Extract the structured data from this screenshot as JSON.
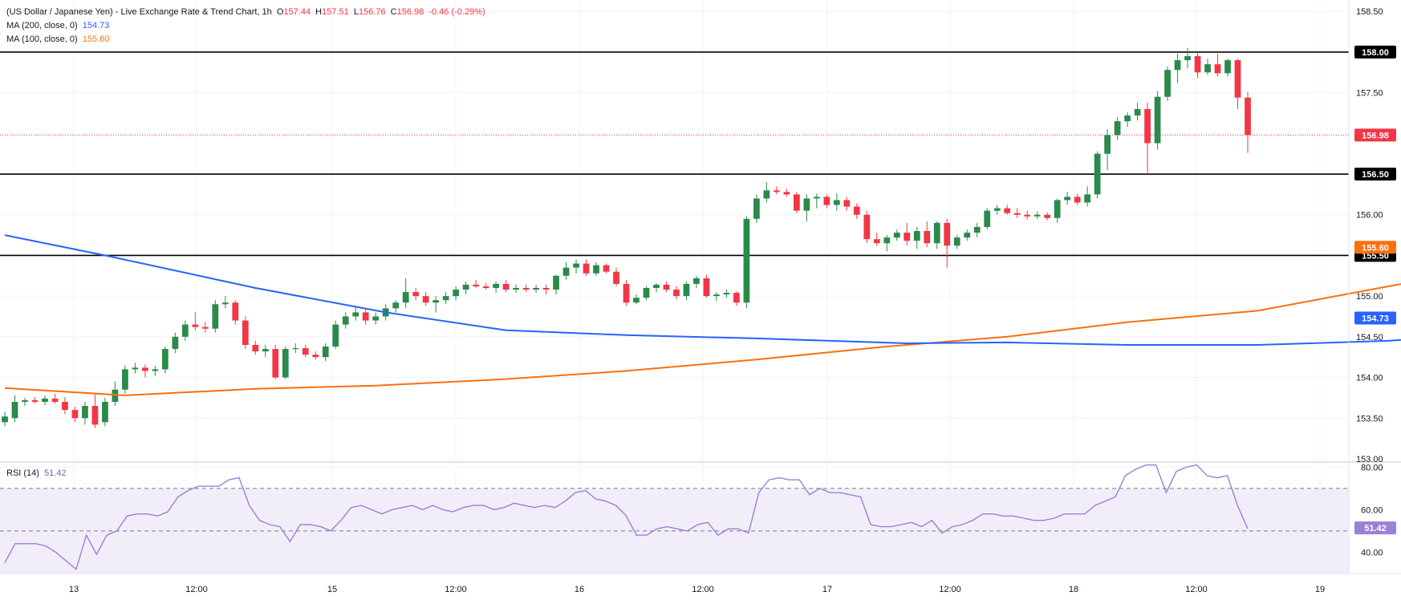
{
  "header": {
    "symbol": "(US Dollar / Japanese Yen) - Live Exchange Rate & Trend Chart, 1h",
    "open_label": "O",
    "open": "157.44",
    "high_label": "H",
    "high": "157.51",
    "low_label": "L",
    "low": "156.76",
    "close_label": "C",
    "close": "156.98",
    "change": "-0.46 (-0.29%)"
  },
  "indicators": {
    "ma200_label": "MA (200, close, 0)",
    "ma200_value": "154.73",
    "ma100_label": "MA (100, close, 0)",
    "ma100_value": "155.60",
    "rsi_label": "RSI (14)",
    "rsi_value": "51.42"
  },
  "colors": {
    "up": "#26a69a",
    "up_fill": "#2a8a4a",
    "down": "#f23645",
    "ma200": "#2962ff",
    "ma100": "#f7700f",
    "rsi": "#9c7fd6",
    "rsi_band": "#ede7f6"
  },
  "chart_data": [
    {
      "type": "candlestick",
      "title": "(US Dollar / Japanese Yen) - Live Exchange Rate & Trend Chart, 1h",
      "y_ticks": [
        "158.50",
        "158.00",
        "157.50",
        "157.00",
        "156.50",
        "156.00",
        "155.50",
        "155.00",
        "154.50",
        "154.00",
        "153.50",
        "153.00"
      ],
      "ylim": [
        152.97,
        158.64
      ],
      "x_ticks": [
        "13",
        "12:00",
        "15",
        "12:00",
        "16",
        "12:00",
        "17",
        "12:00",
        "18",
        "12:00",
        "19"
      ],
      "horizontal_levels": [
        158.0,
        156.5,
        155.5
      ],
      "level_labels": [
        "158.00",
        "156.50",
        "155.50"
      ],
      "last_price": 156.98,
      "last_price_label": "156.98",
      "candles": [
        {
          "o": 153.45,
          "h": 153.58,
          "l": 153.4,
          "c": 153.52
        },
        {
          "o": 153.5,
          "h": 153.78,
          "l": 153.45,
          "c": 153.7
        },
        {
          "o": 153.7,
          "h": 153.75,
          "l": 153.65,
          "c": 153.72
        },
        {
          "o": 153.72,
          "h": 153.76,
          "l": 153.68,
          "c": 153.7
        },
        {
          "o": 153.7,
          "h": 153.78,
          "l": 153.66,
          "c": 153.74
        },
        {
          "o": 153.74,
          "h": 153.8,
          "l": 153.68,
          "c": 153.7
        },
        {
          "o": 153.7,
          "h": 153.76,
          "l": 153.55,
          "c": 153.6
        },
        {
          "o": 153.6,
          "h": 153.64,
          "l": 153.45,
          "c": 153.5
        },
        {
          "o": 153.5,
          "h": 153.7,
          "l": 153.42,
          "c": 153.65
        },
        {
          "o": 153.65,
          "h": 153.8,
          "l": 153.38,
          "c": 153.42
        },
        {
          "o": 153.45,
          "h": 153.75,
          "l": 153.4,
          "c": 153.7
        },
        {
          "o": 153.7,
          "h": 153.95,
          "l": 153.65,
          "c": 153.85
        },
        {
          "o": 153.85,
          "h": 154.15,
          "l": 153.8,
          "c": 154.1
        },
        {
          "o": 154.1,
          "h": 154.18,
          "l": 154.05,
          "c": 154.12
        },
        {
          "o": 154.12,
          "h": 154.16,
          "l": 154.0,
          "c": 154.08
        },
        {
          "o": 154.08,
          "h": 154.14,
          "l": 154.02,
          "c": 154.1
        },
        {
          "o": 154.1,
          "h": 154.38,
          "l": 154.05,
          "c": 154.35
        },
        {
          "o": 154.35,
          "h": 154.55,
          "l": 154.3,
          "c": 154.5
        },
        {
          "o": 154.5,
          "h": 154.7,
          "l": 154.45,
          "c": 154.65
        },
        {
          "o": 154.65,
          "h": 154.8,
          "l": 154.58,
          "c": 154.62
        },
        {
          "o": 154.62,
          "h": 154.68,
          "l": 154.55,
          "c": 154.6
        },
        {
          "o": 154.6,
          "h": 154.95,
          "l": 154.55,
          "c": 154.9
        },
        {
          "o": 154.9,
          "h": 155.0,
          "l": 154.85,
          "c": 154.92
        },
        {
          "o": 154.92,
          "h": 154.95,
          "l": 154.65,
          "c": 154.7
        },
        {
          "o": 154.7,
          "h": 154.75,
          "l": 154.35,
          "c": 154.4
        },
        {
          "o": 154.4,
          "h": 154.45,
          "l": 154.28,
          "c": 154.32
        },
        {
          "o": 154.32,
          "h": 154.4,
          "l": 154.25,
          "c": 154.35
        },
        {
          "o": 154.35,
          "h": 154.4,
          "l": 153.98,
          "c": 154.0
        },
        {
          "o": 154.0,
          "h": 154.38,
          "l": 153.98,
          "c": 154.35
        },
        {
          "o": 154.35,
          "h": 154.42,
          "l": 154.3,
          "c": 154.36
        },
        {
          "o": 154.36,
          "h": 154.4,
          "l": 154.25,
          "c": 154.28
        },
        {
          "o": 154.28,
          "h": 154.32,
          "l": 154.22,
          "c": 154.25
        },
        {
          "o": 154.25,
          "h": 154.42,
          "l": 154.2,
          "c": 154.38
        },
        {
          "o": 154.38,
          "h": 154.7,
          "l": 154.35,
          "c": 154.65
        },
        {
          "o": 154.65,
          "h": 154.8,
          "l": 154.6,
          "c": 154.75
        },
        {
          "o": 154.75,
          "h": 154.88,
          "l": 154.7,
          "c": 154.8
        },
        {
          "o": 154.8,
          "h": 154.85,
          "l": 154.65,
          "c": 154.7
        },
        {
          "o": 154.7,
          "h": 154.8,
          "l": 154.65,
          "c": 154.75
        },
        {
          "o": 154.75,
          "h": 154.9,
          "l": 154.7,
          "c": 154.85
        },
        {
          "o": 154.85,
          "h": 154.95,
          "l": 154.8,
          "c": 154.92
        },
        {
          "o": 154.92,
          "h": 155.22,
          "l": 154.85,
          "c": 155.05
        },
        {
          "o": 155.05,
          "h": 155.1,
          "l": 154.95,
          "c": 155.0
        },
        {
          "o": 155.0,
          "h": 155.05,
          "l": 154.88,
          "c": 154.92
        },
        {
          "o": 154.92,
          "h": 155.0,
          "l": 154.8,
          "c": 154.95
        },
        {
          "o": 154.95,
          "h": 155.05,
          "l": 154.9,
          "c": 155.0
        },
        {
          "o": 155.0,
          "h": 155.12,
          "l": 154.95,
          "c": 155.08
        },
        {
          "o": 155.08,
          "h": 155.18,
          "l": 155.02,
          "c": 155.14
        },
        {
          "o": 155.14,
          "h": 155.2,
          "l": 155.1,
          "c": 155.12
        },
        {
          "o": 155.12,
          "h": 155.16,
          "l": 155.08,
          "c": 155.1
        },
        {
          "o": 155.1,
          "h": 155.18,
          "l": 155.04,
          "c": 155.15
        },
        {
          "o": 155.15,
          "h": 155.2,
          "l": 155.05,
          "c": 155.08
        },
        {
          "o": 155.08,
          "h": 155.14,
          "l": 155.04,
          "c": 155.1
        },
        {
          "o": 155.1,
          "h": 155.14,
          "l": 155.05,
          "c": 155.08
        },
        {
          "o": 155.08,
          "h": 155.14,
          "l": 155.04,
          "c": 155.1
        },
        {
          "o": 155.1,
          "h": 155.14,
          "l": 155.02,
          "c": 155.08
        },
        {
          "o": 155.08,
          "h": 155.26,
          "l": 155.02,
          "c": 155.25
        },
        {
          "o": 155.25,
          "h": 155.42,
          "l": 155.2,
          "c": 155.35
        },
        {
          "o": 155.35,
          "h": 155.45,
          "l": 155.28,
          "c": 155.4
        },
        {
          "o": 155.4,
          "h": 155.45,
          "l": 155.25,
          "c": 155.28
        },
        {
          "o": 155.28,
          "h": 155.42,
          "l": 155.25,
          "c": 155.38
        },
        {
          "o": 155.38,
          "h": 155.4,
          "l": 155.28,
          "c": 155.3
        },
        {
          "o": 155.3,
          "h": 155.35,
          "l": 155.12,
          "c": 155.15
        },
        {
          "o": 155.15,
          "h": 155.2,
          "l": 154.88,
          "c": 154.92
        },
        {
          "o": 154.92,
          "h": 155.02,
          "l": 154.9,
          "c": 154.98
        },
        {
          "o": 154.98,
          "h": 155.12,
          "l": 154.95,
          "c": 155.1
        },
        {
          "o": 155.1,
          "h": 155.16,
          "l": 155.05,
          "c": 155.14
        },
        {
          "o": 155.14,
          "h": 155.18,
          "l": 155.05,
          "c": 155.08
        },
        {
          "o": 155.08,
          "h": 155.12,
          "l": 154.96,
          "c": 155.0
        },
        {
          "o": 155.0,
          "h": 155.18,
          "l": 154.95,
          "c": 155.15
        },
        {
          "o": 155.15,
          "h": 155.25,
          "l": 155.1,
          "c": 155.22
        },
        {
          "o": 155.22,
          "h": 155.26,
          "l": 154.98,
          "c": 155.0
        },
        {
          "o": 155.0,
          "h": 155.05,
          "l": 154.94,
          "c": 155.02
        },
        {
          "o": 155.02,
          "h": 155.08,
          "l": 154.98,
          "c": 155.04
        },
        {
          "o": 155.04,
          "h": 155.06,
          "l": 154.88,
          "c": 154.92
        },
        {
          "o": 154.92,
          "h": 155.98,
          "l": 154.85,
          "c": 155.95
        },
        {
          "o": 155.95,
          "h": 156.25,
          "l": 155.9,
          "c": 156.2
        },
        {
          "o": 156.2,
          "h": 156.4,
          "l": 156.15,
          "c": 156.3
        },
        {
          "o": 156.3,
          "h": 156.35,
          "l": 156.25,
          "c": 156.28
        },
        {
          "o": 156.28,
          "h": 156.32,
          "l": 156.22,
          "c": 156.25
        },
        {
          "o": 156.25,
          "h": 156.28,
          "l": 156.02,
          "c": 156.05
        },
        {
          "o": 156.05,
          "h": 156.25,
          "l": 155.92,
          "c": 156.2
        },
        {
          "o": 156.2,
          "h": 156.26,
          "l": 156.08,
          "c": 156.22
        },
        {
          "o": 156.22,
          "h": 156.25,
          "l": 156.08,
          "c": 156.12
        },
        {
          "o": 156.12,
          "h": 156.26,
          "l": 156.05,
          "c": 156.18
        },
        {
          "o": 156.18,
          "h": 156.22,
          "l": 156.05,
          "c": 156.1
        },
        {
          "o": 156.1,
          "h": 156.14,
          "l": 155.95,
          "c": 156.0
        },
        {
          "o": 156.0,
          "h": 156.05,
          "l": 155.65,
          "c": 155.7
        },
        {
          "o": 155.7,
          "h": 155.78,
          "l": 155.62,
          "c": 155.65
        },
        {
          "o": 155.65,
          "h": 155.75,
          "l": 155.55,
          "c": 155.72
        },
        {
          "o": 155.72,
          "h": 155.82,
          "l": 155.68,
          "c": 155.78
        },
        {
          "o": 155.78,
          "h": 155.9,
          "l": 155.62,
          "c": 155.68
        },
        {
          "o": 155.68,
          "h": 155.85,
          "l": 155.58,
          "c": 155.8
        },
        {
          "o": 155.8,
          "h": 155.92,
          "l": 155.6,
          "c": 155.65
        },
        {
          "o": 155.65,
          "h": 155.92,
          "l": 155.58,
          "c": 155.9
        },
        {
          "o": 155.9,
          "h": 155.95,
          "l": 155.35,
          "c": 155.62
        },
        {
          "o": 155.62,
          "h": 155.75,
          "l": 155.58,
          "c": 155.72
        },
        {
          "o": 155.72,
          "h": 155.82,
          "l": 155.68,
          "c": 155.78
        },
        {
          "o": 155.78,
          "h": 155.9,
          "l": 155.72,
          "c": 155.85
        },
        {
          "o": 155.85,
          "h": 156.08,
          "l": 155.82,
          "c": 156.05
        },
        {
          "o": 156.05,
          "h": 156.12,
          "l": 156.0,
          "c": 156.08
        },
        {
          "o": 156.08,
          "h": 156.12,
          "l": 156.0,
          "c": 156.02
        },
        {
          "o": 156.02,
          "h": 156.08,
          "l": 155.96,
          "c": 156.0
        },
        {
          "o": 156.0,
          "h": 156.05,
          "l": 155.94,
          "c": 155.98
        },
        {
          "o": 155.98,
          "h": 156.04,
          "l": 155.95,
          "c": 156.0
        },
        {
          "o": 156.0,
          "h": 156.03,
          "l": 155.93,
          "c": 155.96
        },
        {
          "o": 155.96,
          "h": 156.2,
          "l": 155.9,
          "c": 156.18
        },
        {
          "o": 156.18,
          "h": 156.28,
          "l": 156.12,
          "c": 156.22
        },
        {
          "o": 156.22,
          "h": 156.26,
          "l": 156.12,
          "c": 156.15
        },
        {
          "o": 156.15,
          "h": 156.35,
          "l": 156.1,
          "c": 156.25
        },
        {
          "o": 156.25,
          "h": 156.78,
          "l": 156.2,
          "c": 156.75
        },
        {
          "o": 156.75,
          "h": 157.05,
          "l": 156.55,
          "c": 156.98
        },
        {
          "o": 156.98,
          "h": 157.2,
          "l": 156.92,
          "c": 157.15
        },
        {
          "o": 157.15,
          "h": 157.26,
          "l": 157.08,
          "c": 157.22
        },
        {
          "o": 157.22,
          "h": 157.38,
          "l": 157.16,
          "c": 157.3
        },
        {
          "o": 157.3,
          "h": 157.38,
          "l": 156.5,
          "c": 156.88
        },
        {
          "o": 156.88,
          "h": 157.52,
          "l": 156.8,
          "c": 157.45
        },
        {
          "o": 157.45,
          "h": 157.82,
          "l": 157.4,
          "c": 157.78
        },
        {
          "o": 157.78,
          "h": 157.98,
          "l": 157.62,
          "c": 157.9
        },
        {
          "o": 157.9,
          "h": 158.05,
          "l": 157.8,
          "c": 157.95
        },
        {
          "o": 157.95,
          "h": 158.0,
          "l": 157.68,
          "c": 157.75
        },
        {
          "o": 157.75,
          "h": 157.92,
          "l": 157.72,
          "c": 157.85
        },
        {
          "o": 157.85,
          "h": 157.98,
          "l": 157.7,
          "c": 157.74
        },
        {
          "o": 157.74,
          "h": 157.92,
          "l": 157.7,
          "c": 157.9
        },
        {
          "o": 157.9,
          "h": 157.92,
          "l": 157.3,
          "c": 157.44
        },
        {
          "o": 157.44,
          "h": 157.51,
          "l": 156.76,
          "c": 156.98
        }
      ],
      "ma100": {
        "name": "MA (100, close, 0)",
        "last": 155.6,
        "last_label": "155.60",
        "points": [
          [
            0,
            153.87
          ],
          [
            12,
            153.78
          ],
          [
            25,
            153.86
          ],
          [
            37,
            153.9
          ],
          [
            50,
            153.98
          ],
          [
            62,
            154.08
          ],
          [
            75,
            154.22
          ],
          [
            88,
            154.38
          ],
          [
            100,
            154.5
          ],
          [
            112,
            154.68
          ],
          [
            125,
            154.82
          ],
          [
            138,
            155.12
          ],
          [
            150,
            155.38
          ],
          [
            154,
            155.55
          ],
          [
            162,
            155.6
          ]
        ]
      },
      "ma200": {
        "name": "MA (200, close, 0)",
        "last": 154.73,
        "last_label": "154.73",
        "points": [
          [
            0,
            155.75
          ],
          [
            10,
            155.5
          ],
          [
            25,
            155.1
          ],
          [
            38,
            154.8
          ],
          [
            50,
            154.58
          ],
          [
            62,
            154.52
          ],
          [
            75,
            154.48
          ],
          [
            90,
            154.42
          ],
          [
            100,
            154.43
          ],
          [
            112,
            154.4
          ],
          [
            125,
            154.4
          ],
          [
            138,
            154.45
          ],
          [
            150,
            154.56
          ],
          [
            162,
            154.73
          ]
        ]
      }
    },
    {
      "type": "line",
      "title": "RSI (14)",
      "name": "RSI (14)",
      "y_ticks": [
        "80.00",
        "60.00",
        "40.00"
      ],
      "ylim": [
        30.0,
        82.0
      ],
      "band": [
        30,
        70
      ],
      "mid": 50,
      "last_value": 51.42,
      "last_label": "51.42",
      "values": [
        35,
        44,
        44,
        44,
        43,
        40,
        36,
        32,
        48,
        39,
        48,
        50,
        57,
        58,
        58,
        57,
        59,
        66,
        69,
        71,
        71,
        71,
        74,
        75,
        62,
        55,
        53,
        52,
        45,
        53,
        53,
        52,
        50,
        55,
        61,
        62,
        60,
        58,
        60,
        61,
        62,
        60,
        62,
        60,
        59,
        61,
        62,
        62,
        60,
        61,
        63,
        62,
        61,
        62,
        61,
        64,
        68,
        69,
        65,
        64,
        62,
        57,
        48,
        48,
        51,
        52,
        51,
        50,
        53,
        54,
        48,
        51,
        51,
        49,
        68,
        74,
        75,
        74,
        74,
        67,
        70,
        68,
        68,
        67,
        66,
        53,
        52,
        52,
        53,
        54,
        52,
        55,
        49,
        52,
        53,
        55,
        58,
        58,
        57,
        57,
        56,
        55,
        55,
        56,
        58,
        58,
        58,
        62,
        64,
        66,
        76,
        79,
        81,
        81,
        68,
        78,
        80,
        81,
        76,
        75,
        76,
        62,
        51
      ]
    }
  ]
}
